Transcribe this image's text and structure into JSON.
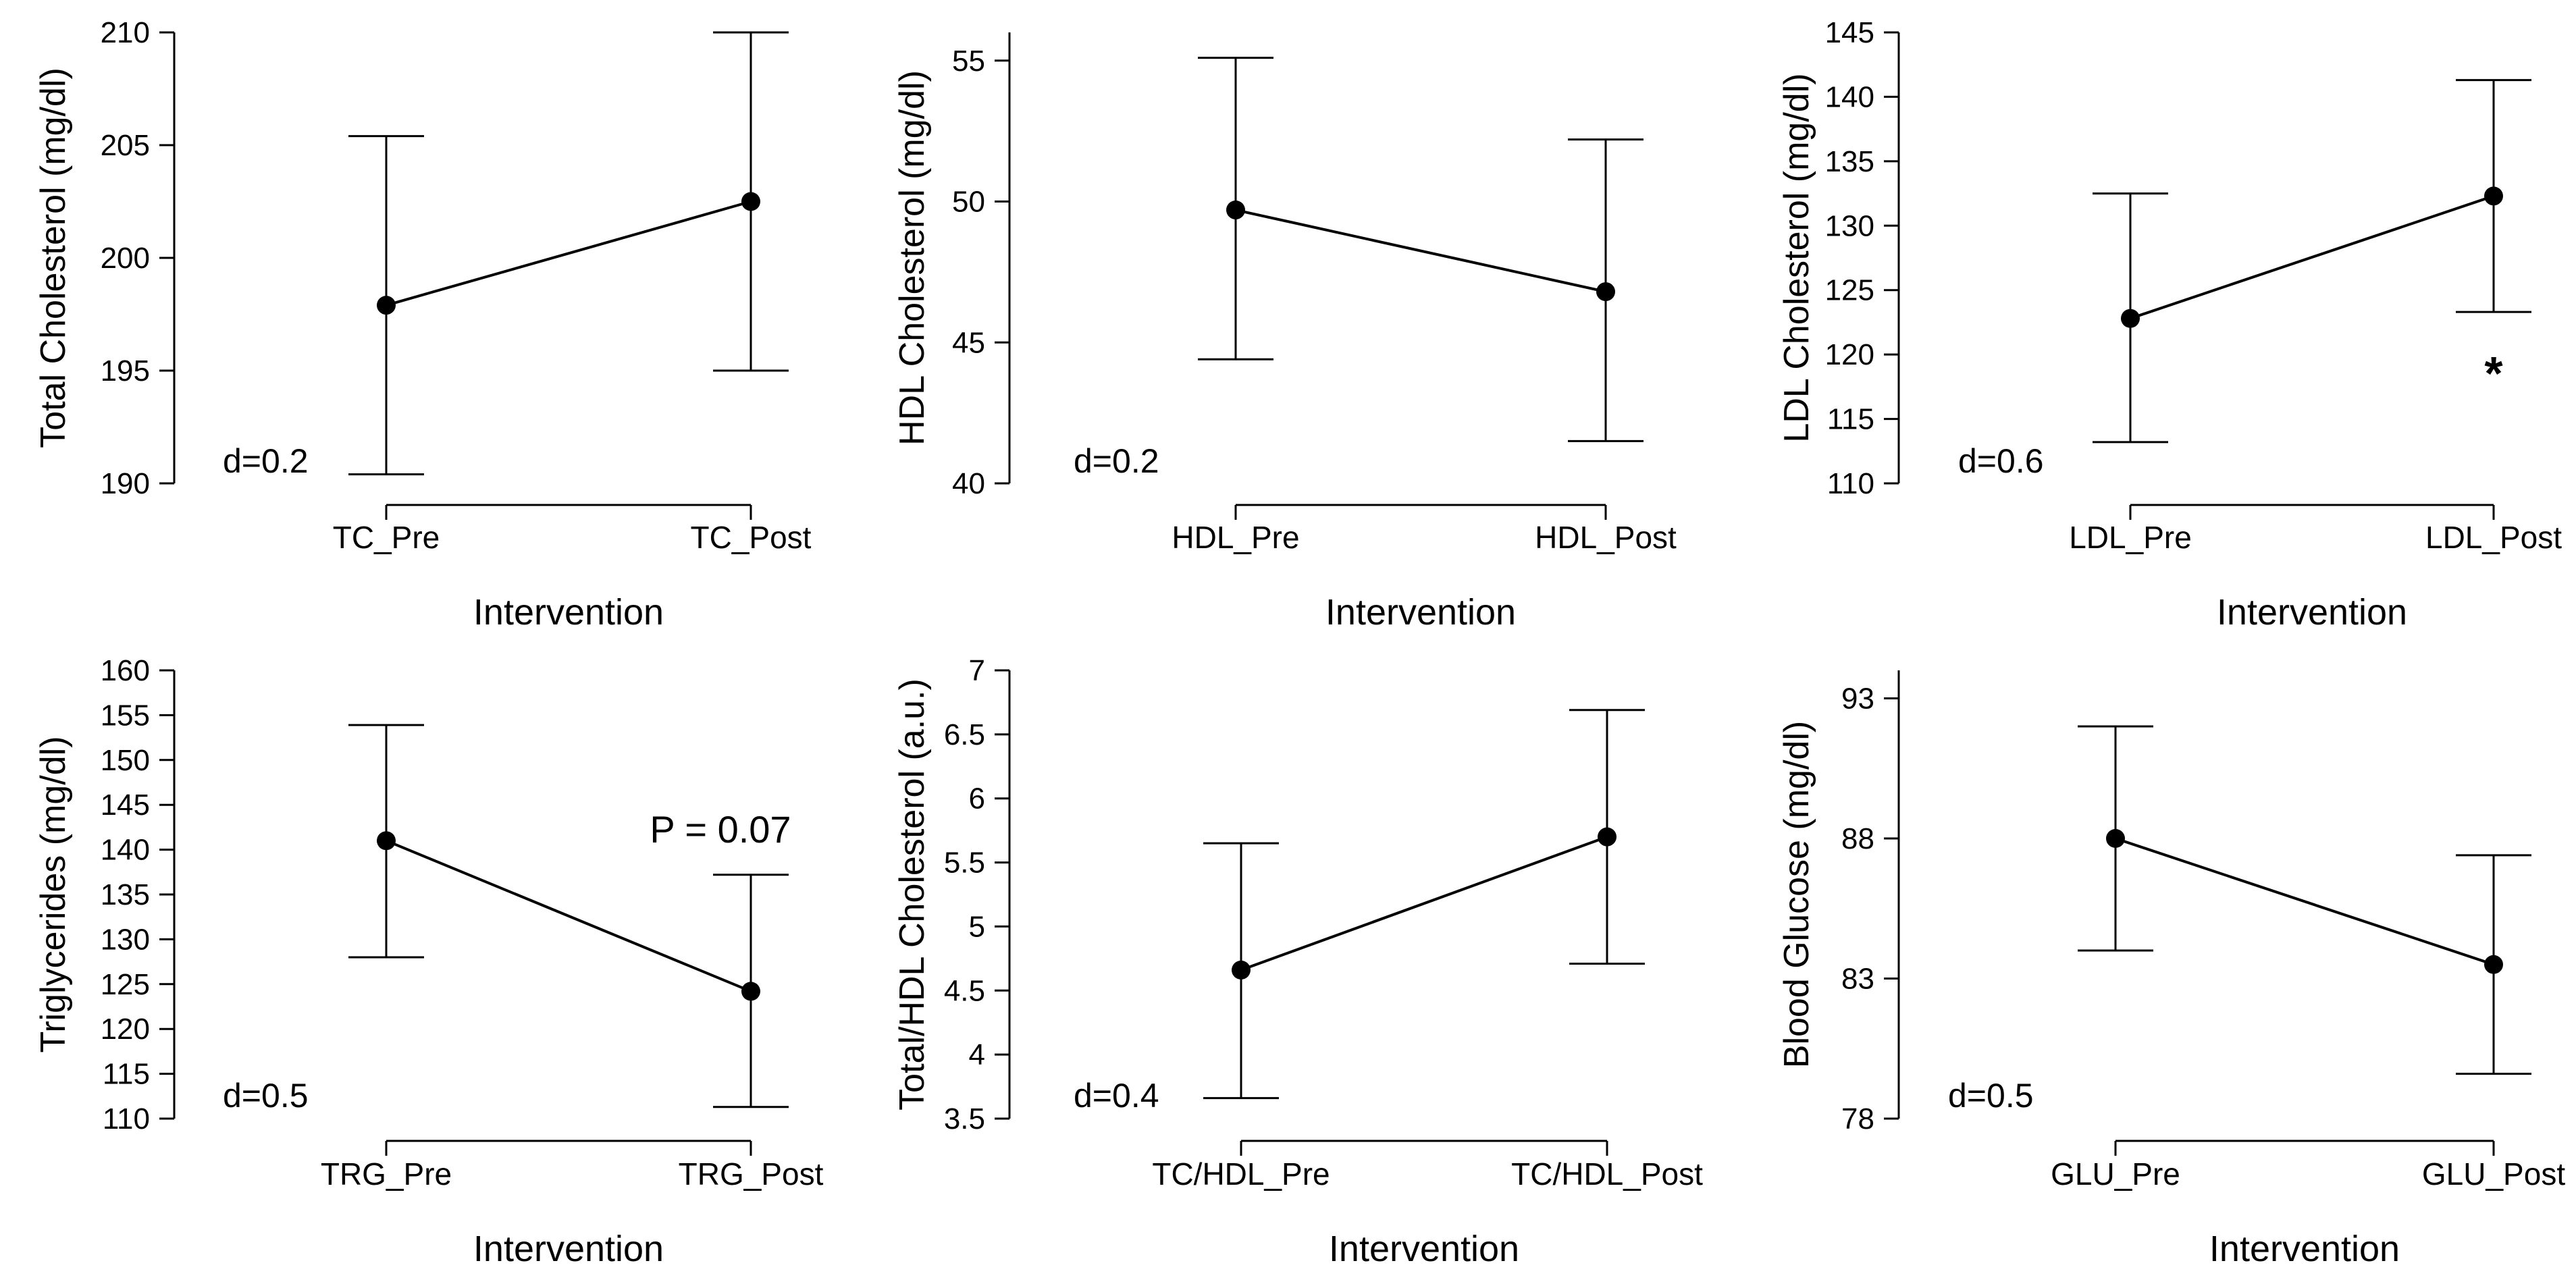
{
  "chart_data": [
    {
      "type": "line",
      "ylabel": "Total Cholesterol (mg/dl)",
      "xlabel": "Intervention",
      "categories": [
        "TC_Pre",
        "TC_Post"
      ],
      "values": [
        197.9,
        202.5
      ],
      "error_low": [
        190.4,
        195.0
      ],
      "error_high": [
        205.4,
        210.0
      ],
      "ylim": [
        190,
        210
      ],
      "yticks": [
        190,
        195,
        200,
        205,
        210
      ],
      "ytick_labels": [
        "190",
        "195",
        "200",
        "205",
        "210"
      ],
      "effect_size": "d=0.2"
    },
    {
      "type": "line",
      "ylabel": "HDL Cholesterol (mg/dl)",
      "xlabel": "Intervention",
      "categories": [
        "HDL_Pre",
        "HDL_Post"
      ],
      "values": [
        49.7,
        46.8
      ],
      "error_low": [
        44.4,
        41.5
      ],
      "error_high": [
        55.1,
        52.2
      ],
      "ylim": [
        40,
        56
      ],
      "yticks": [
        40,
        45,
        50,
        55
      ],
      "ytick_labels": [
        "40",
        "45",
        "50",
        "55"
      ],
      "effect_size": "d=0.2"
    },
    {
      "type": "line",
      "ylabel": "LDL Cholesterol (mg/dl)",
      "xlabel": "Intervention",
      "categories": [
        "LDL_Pre",
        "LDL_Post"
      ],
      "values": [
        122.8,
        132.3
      ],
      "error_low": [
        113.2,
        123.3
      ],
      "error_high": [
        132.5,
        141.3
      ],
      "ylim": [
        110,
        145
      ],
      "yticks": [
        110,
        115,
        120,
        125,
        130,
        135,
        140,
        145
      ],
      "ytick_labels": [
        "110",
        "115",
        "120",
        "125",
        "130",
        "135",
        "140",
        "145"
      ],
      "effect_size": "d=0.6",
      "annotation": "*"
    },
    {
      "type": "line",
      "ylabel": "Triglycerides (mg/dl)",
      "xlabel": "Intervention",
      "categories": [
        "TRG_Pre",
        "TRG_Post"
      ],
      "values": [
        141.0,
        124.2
      ],
      "error_low": [
        128.0,
        111.3
      ],
      "error_high": [
        153.9,
        137.2
      ],
      "ylim": [
        110,
        160
      ],
      "yticks": [
        110,
        115,
        120,
        125,
        130,
        135,
        140,
        145,
        150,
        155,
        160
      ],
      "ytick_labels": [
        "110",
        "115",
        "120",
        "125",
        "130",
        "135",
        "140",
        "145",
        "150",
        "155",
        "160"
      ],
      "effect_size": "d=0.5",
      "annotation": "P = 0.07"
    },
    {
      "type": "line",
      "ylabel": "Total/HDL Cholesterol (a.u.)",
      "xlabel": "Intervention",
      "categories": [
        "TC/HDL_Pre",
        "TC/HDL_Post"
      ],
      "values": [
        4.66,
        5.7
      ],
      "error_low": [
        3.66,
        4.71
      ],
      "error_high": [
        5.65,
        6.69
      ],
      "ylim": [
        3.5,
        7
      ],
      "yticks": [
        3.5,
        4,
        4.5,
        5,
        5.5,
        6,
        6.5,
        7
      ],
      "ytick_labels": [
        "3.5",
        "4",
        "4.5",
        "5",
        "5.5",
        "6",
        "6.5",
        "7"
      ],
      "effect_size": "d=0.4"
    },
    {
      "type": "line",
      "ylabel": "Blood Glucose (mg/dl)",
      "xlabel": "Intervention",
      "categories": [
        "GLU_Pre",
        "GLU_Post"
      ],
      "values": [
        88.0,
        83.5
      ],
      "error_low": [
        84.0,
        79.6
      ],
      "error_high": [
        92.0,
        87.4
      ],
      "ylim": [
        78,
        94
      ],
      "yticks": [
        78,
        83,
        88,
        93
      ],
      "ytick_labels": [
        "78",
        "83",
        "88",
        "93"
      ],
      "effect_size": "d=0.5"
    }
  ]
}
